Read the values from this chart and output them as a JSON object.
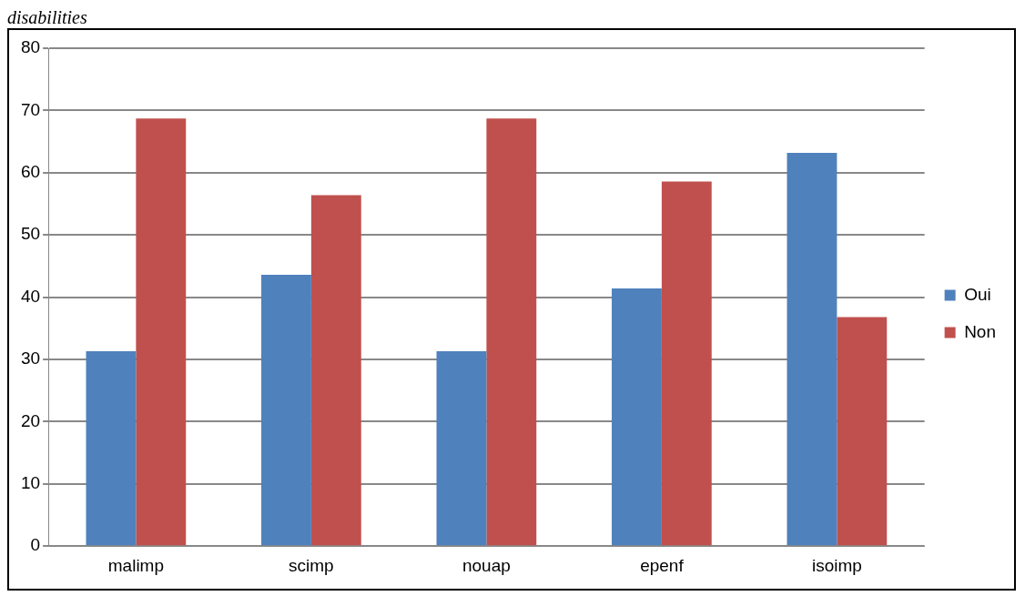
{
  "chart_data": {
    "type": "bar",
    "annotations": [
      "disabilities"
    ],
    "categories": [
      "malimp",
      "scimp",
      "nouap",
      "epenf",
      "isoimp"
    ],
    "series": [
      {
        "name": "Oui",
        "color": "#4f81bd",
        "values": [
          31.3,
          43.6,
          31.3,
          41.4,
          63.2
        ]
      },
      {
        "name": "Non",
        "color": "#c0504d",
        "values": [
          68.7,
          56.4,
          68.7,
          58.6,
          36.8
        ]
      }
    ],
    "ylim": [
      0,
      80
    ],
    "yticks": [
      0,
      10,
      20,
      30,
      40,
      50,
      60,
      70,
      80
    ],
    "grid": "y",
    "legend": "right"
  }
}
